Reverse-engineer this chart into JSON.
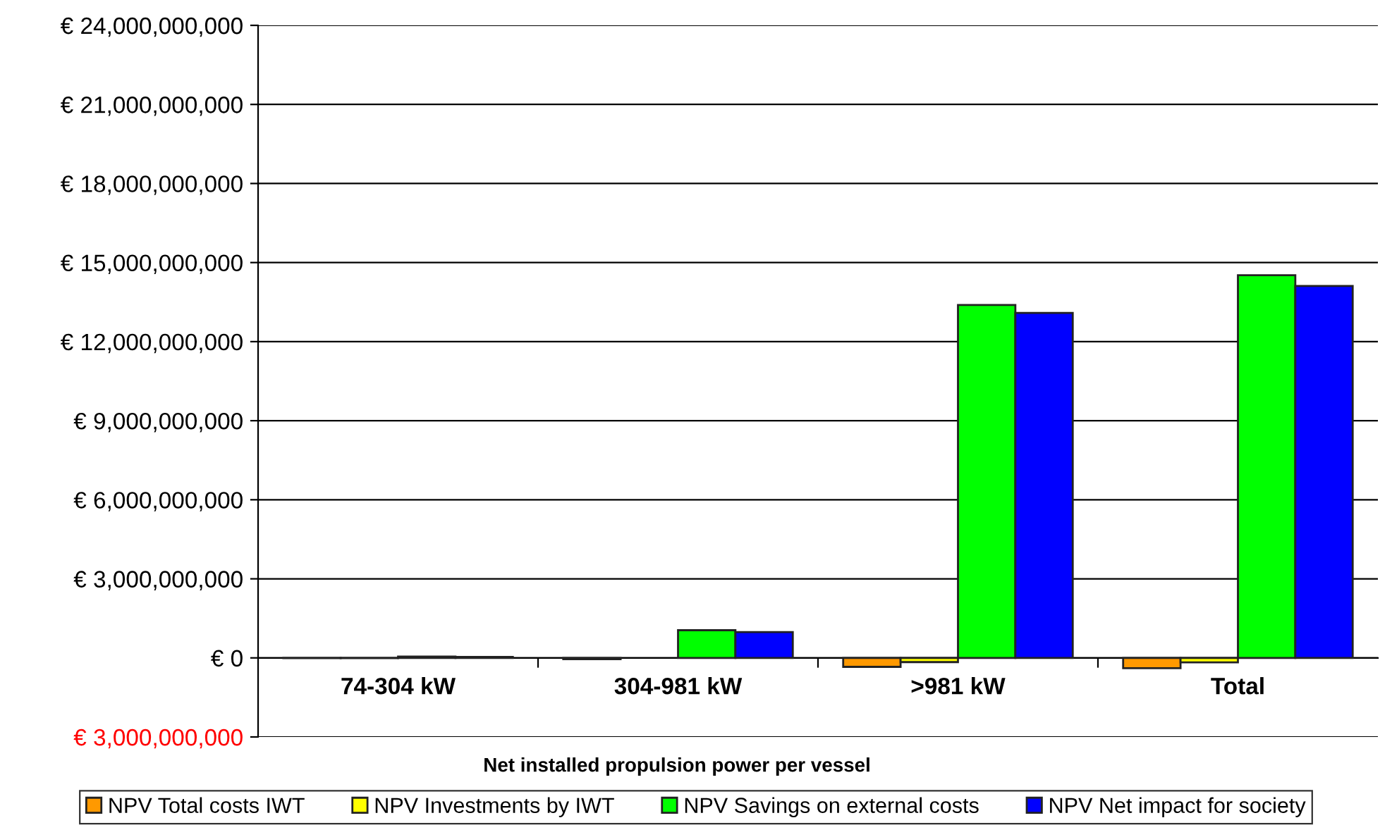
{
  "chart_data": {
    "type": "bar",
    "xlabel": "Net installed propulsion power per vessel",
    "categories": [
      "74-304 kW",
      "304-981 kW",
      ">981 kW",
      "Total"
    ],
    "series": [
      {
        "name": "NPV Total costs IWT",
        "color": "#ff9900",
        "values": [
          -10000000,
          -50000000,
          -340000000,
          -390000000
        ]
      },
      {
        "name": "NPV Investments by IWT",
        "color": "#ffff00",
        "values": [
          -10000000,
          null,
          -160000000,
          -170000000
        ]
      },
      {
        "name": "NPV Savings on external costs",
        "color": "#00ff00",
        "values": [
          50000000,
          1050000000,
          13390000000,
          14520000000
        ]
      },
      {
        "name": "NPV Net impact for society",
        "color": "#0000ff",
        "values": [
          40000000,
          980000000,
          13090000000,
          14110000000
        ]
      }
    ],
    "ylim": [
      -3000000000,
      24000000000
    ],
    "yticks": [
      {
        "value": -3000000000,
        "label": "€ 3,000,000,000"
      },
      {
        "value": 0,
        "label": "€ 0"
      },
      {
        "value": 3000000000,
        "label": "€ 3,000,000,000"
      },
      {
        "value": 6000000000,
        "label": "€ 6,000,000,000"
      },
      {
        "value": 9000000000,
        "label": "€ 9,000,000,000"
      },
      {
        "value": 12000000000,
        "label": "€ 12,000,000,000"
      },
      {
        "value": 15000000000,
        "label": "€ 15,000,000,000"
      },
      {
        "value": 18000000000,
        "label": "€ 18,000,000,000"
      },
      {
        "value": 21000000000,
        "label": "€ 21,000,000,000"
      },
      {
        "value": 24000000000,
        "label": "€ 24,000,000,000"
      }
    ],
    "grid": "y",
    "legend": "bottom"
  }
}
